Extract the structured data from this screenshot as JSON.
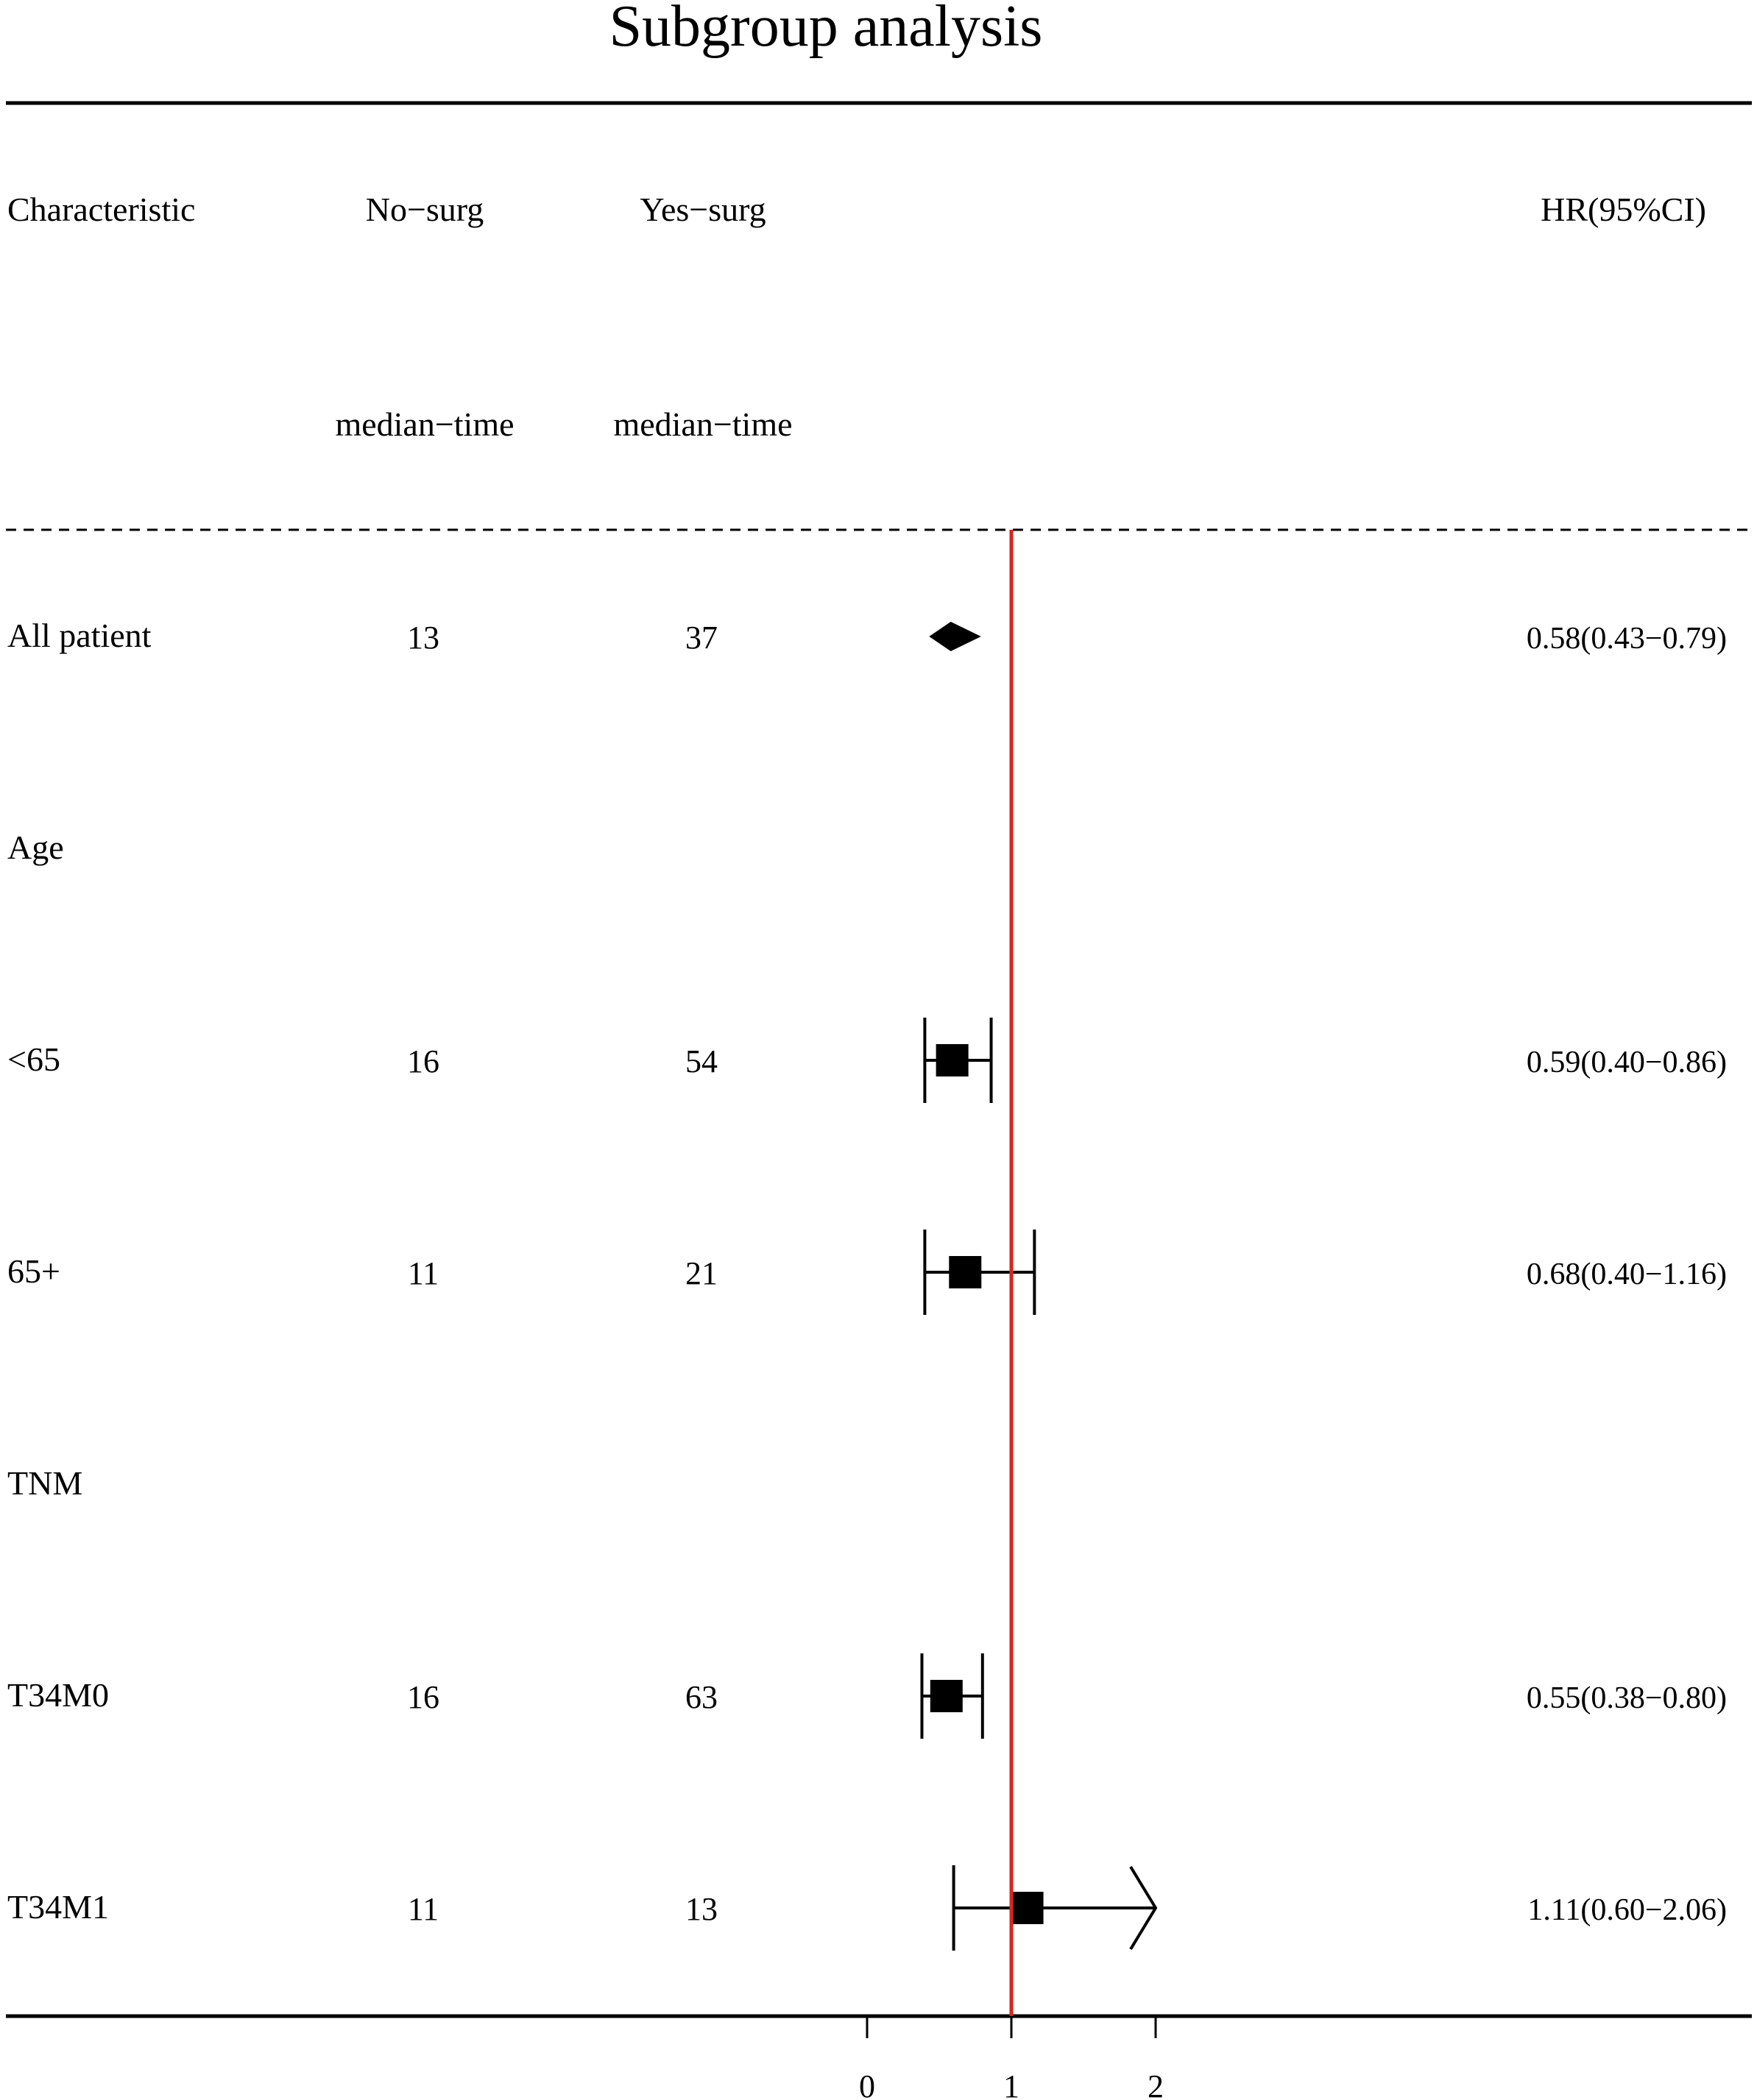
{
  "chart_data": {
    "type": "forest",
    "title": "Subgroup analysis",
    "headers": {
      "characteristic": "Characteristic",
      "no_surg": "No−surg",
      "yes_surg": "Yes−surg",
      "hr": "HR(95%CI)",
      "no_surg_sub": "median−time",
      "yes_surg_sub": "median−time"
    },
    "reference_line": 1,
    "reference_color": "#d7261e",
    "x_ticks": [
      0,
      1,
      2
    ],
    "xlim": [
      0,
      2
    ],
    "rows": [
      {
        "label": "All patient",
        "no": "13",
        "yes": "37",
        "hr_text": "0.58(0.43−0.79)",
        "hr": 0.58,
        "lo": 0.43,
        "hi": 0.79,
        "marker": "diamond"
      },
      {
        "label": "Age",
        "no": "",
        "yes": "",
        "hr_text": "",
        "marker": "none"
      },
      {
        "label": "<65",
        "no": "16",
        "yes": "54",
        "hr_text": "0.59(0.40−0.86)",
        "hr": 0.59,
        "lo": 0.4,
        "hi": 0.86,
        "marker": "square"
      },
      {
        "label": "65+",
        "no": "11",
        "yes": "21",
        "hr_text": "0.68(0.40−1.16)",
        "hr": 0.68,
        "lo": 0.4,
        "hi": 1.16,
        "marker": "square"
      },
      {
        "label": "TNM",
        "no": "",
        "yes": "",
        "hr_text": "",
        "marker": "none"
      },
      {
        "label": "T34M0",
        "no": "16",
        "yes": "63",
        "hr_text": "0.55(0.38−0.80)",
        "hr": 0.55,
        "lo": 0.38,
        "hi": 0.8,
        "marker": "square"
      },
      {
        "label": "T34M1",
        "no": "11",
        "yes": "13",
        "hr_text": "1.11(0.60−2.06)",
        "hr": 1.11,
        "lo": 0.6,
        "hi": 2.06,
        "marker": "square"
      }
    ]
  }
}
